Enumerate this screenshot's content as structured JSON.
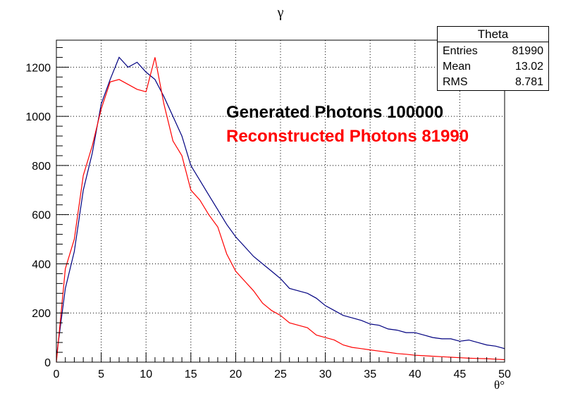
{
  "chart_data": {
    "type": "line",
    "title": "γ",
    "xlabel": "θ°",
    "ylabel": "",
    "xlim": [
      0,
      50
    ],
    "ylim": [
      0,
      1310
    ],
    "x_ticks": [
      0,
      5,
      10,
      15,
      20,
      25,
      30,
      35,
      40,
      45,
      50
    ],
    "y_ticks": [
      0,
      200,
      400,
      600,
      800,
      1000,
      1200
    ],
    "grid": true,
    "annotations": [
      {
        "text": "Generated Photons 100000",
        "color": "#000000"
      },
      {
        "text": "Reconstructed Photons 81990",
        "color": "#ff0000"
      }
    ],
    "stats": {
      "title": "Theta",
      "rows": [
        {
          "key": "Entries",
          "value": "81990"
        },
        {
          "key": "Mean",
          "value": "13.02"
        },
        {
          "key": "RMS",
          "value": "8.781"
        }
      ]
    },
    "series": [
      {
        "color": "#000080",
        "x": [
          0,
          1,
          2,
          3,
          4,
          5,
          6,
          7,
          8,
          9,
          10,
          11,
          12,
          13,
          14,
          15,
          16,
          17,
          18,
          19,
          20,
          21,
          22,
          23,
          24,
          25,
          26,
          27,
          28,
          29,
          30,
          31,
          32,
          33,
          34,
          35,
          36,
          37,
          38,
          39,
          40,
          41,
          42,
          43,
          44,
          45,
          46,
          47,
          48,
          49,
          50
        ],
        "y": [
          20,
          300,
          450,
          700,
          850,
          1050,
          1150,
          1240,
          1200,
          1220,
          1180,
          1150,
          1080,
          1000,
          920,
          800,
          740,
          680,
          620,
          560,
          510,
          470,
          430,
          400,
          370,
          340,
          300,
          290,
          280,
          260,
          230,
          210,
          190,
          180,
          170,
          155,
          150,
          135,
          130,
          120,
          120,
          110,
          100,
          95,
          95,
          85,
          90,
          80,
          70,
          65,
          55
        ]
      },
      {
        "color": "#ff0000",
        "x": [
          0,
          1,
          2,
          3,
          4,
          5,
          6,
          7,
          8,
          9,
          10,
          11,
          12,
          13,
          14,
          15,
          16,
          17,
          18,
          19,
          20,
          21,
          22,
          23,
          24,
          25,
          26,
          27,
          28,
          29,
          30,
          31,
          32,
          33,
          34,
          35,
          36,
          37,
          38,
          39,
          40,
          41,
          42,
          43,
          44,
          45,
          46,
          47,
          48,
          49,
          50
        ],
        "y": [
          0,
          380,
          500,
          760,
          880,
          1030,
          1140,
          1150,
          1130,
          1110,
          1100,
          1240,
          1050,
          900,
          840,
          700,
          660,
          600,
          550,
          440,
          370,
          330,
          290,
          240,
          210,
          190,
          160,
          150,
          140,
          110,
          100,
          90,
          70,
          60,
          55,
          50,
          45,
          40,
          35,
          32,
          28,
          26,
          24,
          22,
          20,
          18,
          16,
          15,
          14,
          12,
          10
        ]
      }
    ]
  }
}
